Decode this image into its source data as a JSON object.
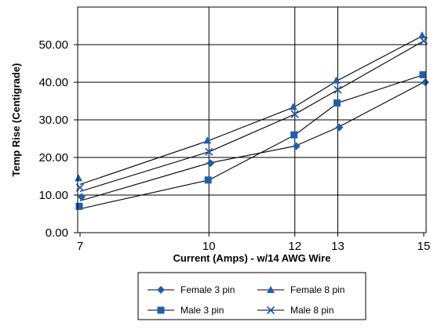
{
  "chart_data": {
    "type": "line",
    "title": "",
    "xlabel": "Current (Amps) - w/14 AWG Wire",
    "ylabel": "Temp Rise (Centigrade)",
    "categories": [
      "7",
      "10",
      "12",
      "13",
      "15"
    ],
    "ylim": [
      0,
      60
    ],
    "yticks": [
      "0.00",
      "10.00",
      "20.00",
      "30.00",
      "40.00",
      "50.00"
    ],
    "grid": true,
    "legend_position": "bottom",
    "series_color": "#1f5fad",
    "series": [
      {
        "name": "Female 3 pin",
        "marker": "diamond",
        "values": [
          9.5,
          18.5,
          23,
          28,
          40
        ]
      },
      {
        "name": "Female 8 pin",
        "marker": "triangle",
        "values": [
          14.5,
          24.5,
          33.5,
          40.5,
          52.5
        ]
      },
      {
        "name": "Male 3 pin",
        "marker": "square",
        "values": [
          7,
          14,
          26,
          34.5,
          42
        ]
      },
      {
        "name": "Male 8 pin",
        "marker": "x",
        "values": [
          12,
          21.5,
          31.5,
          38,
          51
        ]
      }
    ]
  }
}
